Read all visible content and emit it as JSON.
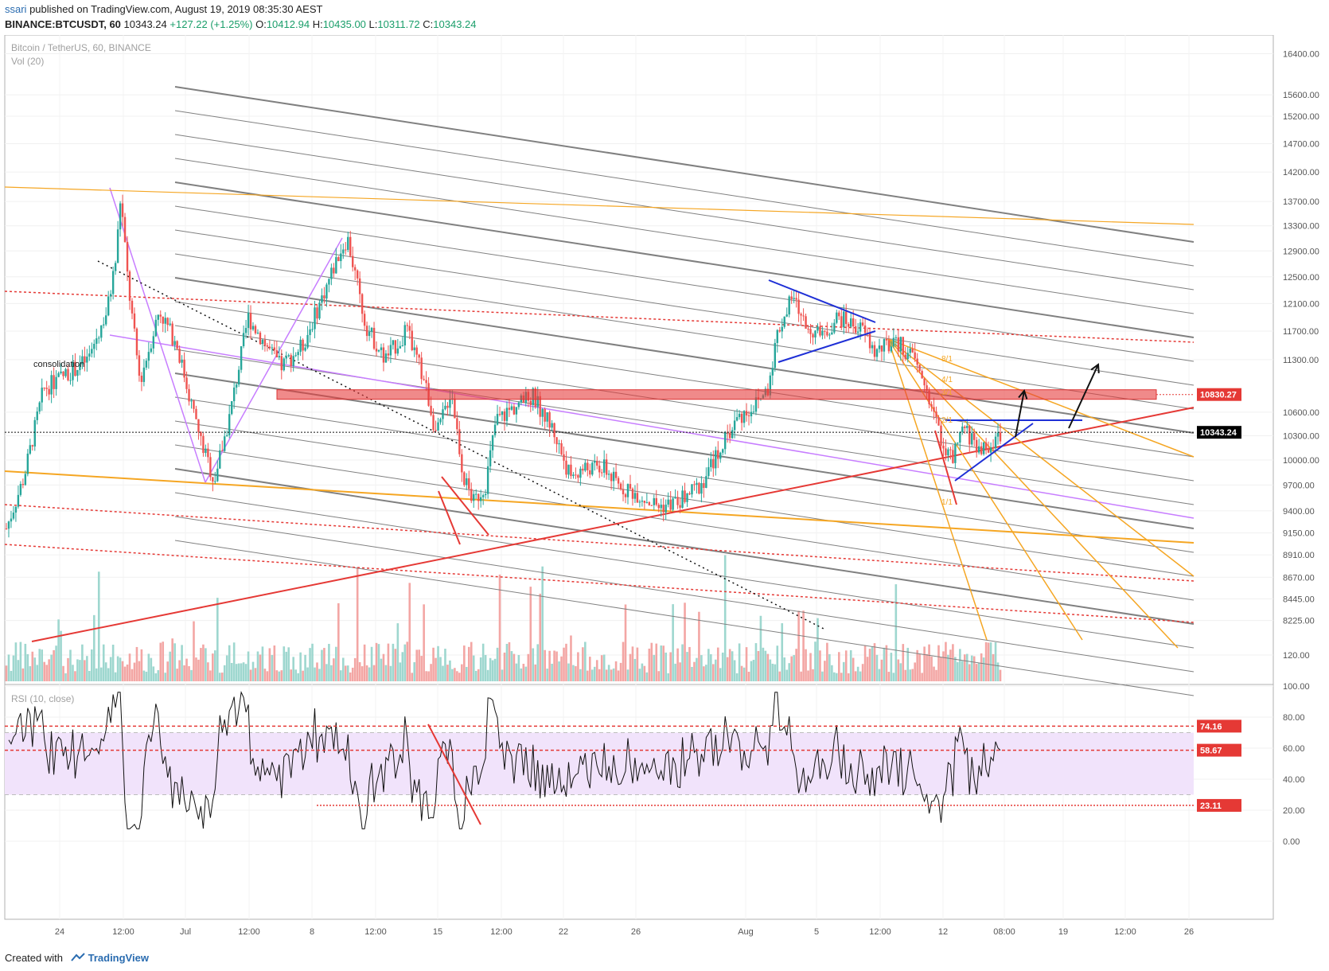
{
  "header": {
    "author": "ssari",
    "published_text": "published on TradingView.com, August 19, 2019 08:35:30 AEST",
    "symbol": "BINANCE:BTCUSDT, 60",
    "last": "10343.24",
    "change": "+127.22 (+1.25%)",
    "o_label": "O:",
    "o": "10412.94",
    "h_label": "H:",
    "h": "10435.00",
    "l_label": "L:",
    "l": "10311.72",
    "c_label": "C:",
    "c": "10343.24"
  },
  "footer": {
    "created_with": "Created with",
    "brand": "TradingView"
  },
  "chart_data": [
    {
      "type": "line",
      "title": "Bitcoin / TetherUS, 60, BINANCE",
      "subtitle": "Vol (20)",
      "y_axis": {
        "scale": "log",
        "ticks": [
          8225,
          8445,
          8670,
          8910,
          9150,
          9400,
          9700,
          10000,
          10300,
          10600,
          10830.27,
          11300,
          11700,
          12100,
          12500,
          12900,
          13300,
          13700,
          14200,
          14700,
          15200,
          15600,
          16400
        ],
        "tick_labels": [
          "8225.00",
          "8445.00",
          "8670.00",
          "8910.00",
          "9150.00",
          "9400.00",
          "9700.00",
          "10000.00",
          "10300.00",
          "10600.00",
          "10830.27",
          "11300.00",
          "11700.00",
          "12100.00",
          "12500.00",
          "12900.00",
          "13300.00",
          "13700.00",
          "14200.00",
          "14700.00",
          "15200.00",
          "15600.00",
          "16400.00"
        ],
        "ylim": [
          8100,
          16800
        ]
      },
      "x_axis": {
        "tick_labels": [
          "24",
          "12:00",
          "Jul",
          "12:00",
          "8",
          "12:00",
          "15",
          "12:00",
          "22",
          "26",
          "Aug",
          "5",
          "12:00",
          "12",
          "08:00",
          "19",
          "12:00",
          "26"
        ]
      },
      "price_path": [
        {
          "t": 0,
          "p": 9200
        },
        {
          "t": 1.2,
          "p": 9800
        },
        {
          "t": 2.5,
          "p": 10900
        },
        {
          "t": 4,
          "p": 11100
        },
        {
          "t": 5.5,
          "p": 11300
        },
        {
          "t": 6.8,
          "p": 12000
        },
        {
          "t": 7.4,
          "p": 12800
        },
        {
          "t": 7.7,
          "p": 13800
        },
        {
          "t": 8.2,
          "p": 12400
        },
        {
          "t": 9.0,
          "p": 11000
        },
        {
          "t": 10.3,
          "p": 12000
        },
        {
          "t": 11.5,
          "p": 11500
        },
        {
          "t": 13.0,
          "p": 10300
        },
        {
          "t": 14.0,
          "p": 9750
        },
        {
          "t": 15.0,
          "p": 10500
        },
        {
          "t": 16.3,
          "p": 11900
        },
        {
          "t": 17.5,
          "p": 11500
        },
        {
          "t": 18.5,
          "p": 11200
        },
        {
          "t": 20.0,
          "p": 11500
        },
        {
          "t": 21.3,
          "p": 12200
        },
        {
          "t": 22.5,
          "p": 12900
        },
        {
          "t": 23.0,
          "p": 13100
        },
        {
          "t": 24.2,
          "p": 11800
        },
        {
          "t": 25.5,
          "p": 11300
        },
        {
          "t": 27.0,
          "p": 11700
        },
        {
          "t": 28.2,
          "p": 11000
        },
        {
          "t": 29.0,
          "p": 10300
        },
        {
          "t": 30.0,
          "p": 10900
        },
        {
          "t": 30.8,
          "p": 9800
        },
        {
          "t": 31.5,
          "p": 9500
        },
        {
          "t": 32.3,
          "p": 9700
        },
        {
          "t": 33.0,
          "p": 10500
        },
        {
          "t": 34.5,
          "p": 10700
        },
        {
          "t": 35.5,
          "p": 10800
        },
        {
          "t": 36.8,
          "p": 10400
        },
        {
          "t": 38.0,
          "p": 9800
        },
        {
          "t": 39.0,
          "p": 9900
        },
        {
          "t": 40.3,
          "p": 9900
        },
        {
          "t": 41.2,
          "p": 9700
        },
        {
          "t": 42.5,
          "p": 9600
        },
        {
          "t": 44.0,
          "p": 9450
        },
        {
          "t": 45.3,
          "p": 9500
        },
        {
          "t": 46.8,
          "p": 9700
        },
        {
          "t": 48.0,
          "p": 10100
        },
        {
          "t": 49.2,
          "p": 10500
        },
        {
          "t": 50.5,
          "p": 10700
        },
        {
          "t": 51.3,
          "p": 10900
        },
        {
          "t": 52.0,
          "p": 11700
        },
        {
          "t": 53.0,
          "p": 12200
        },
        {
          "t": 53.8,
          "p": 11800
        },
        {
          "t": 55.0,
          "p": 11600
        },
        {
          "t": 56.0,
          "p": 11900
        },
        {
          "t": 57.0,
          "p": 11800
        },
        {
          "t": 57.8,
          "p": 11700
        },
        {
          "t": 58.5,
          "p": 11400
        },
        {
          "t": 59.5,
          "p": 11500
        },
        {
          "t": 60.3,
          "p": 11500
        },
        {
          "t": 61.2,
          "p": 11300
        },
        {
          "t": 62.0,
          "p": 10900
        },
        {
          "t": 62.8,
          "p": 10400
        },
        {
          "t": 63.3,
          "p": 10100
        },
        {
          "t": 63.8,
          "p": 10000
        },
        {
          "t": 64.5,
          "p": 10400
        },
        {
          "t": 65.3,
          "p": 10200
        },
        {
          "t": 66.2,
          "p": 10100
        },
        {
          "t": 67.0,
          "p": 10343
        }
      ],
      "horizontal_levels": [
        {
          "value": 10830.27,
          "label": "10830.27",
          "color": "#e53935",
          "style": "dotted"
        },
        {
          "value": 10343.24,
          "label": "10343.24",
          "color": "#000000",
          "style": "dotted"
        }
      ],
      "annotations": [
        "consolidation",
        "8/1",
        "4/1",
        "3/1",
        "2/1",
        "1/1"
      ],
      "colors": {
        "bull": "#26a69a",
        "bear": "#ef5350",
        "pitchfork": "#808080",
        "trend": "#e53935",
        "orange": "#f5a623",
        "violet": "#c77dff",
        "triangle": "#1e2fd6"
      }
    },
    {
      "type": "line",
      "title": "RSI (10, close)",
      "y_axis": {
        "ticks": [
          0,
          20,
          40,
          60,
          80,
          100,
          120
        ],
        "tick_labels": [
          "0.00",
          "20.00",
          "40.00",
          "60.00",
          "80.00",
          "100.00",
          "120.00"
        ],
        "ylim": [
          -15,
          128
        ]
      },
      "levels": [
        {
          "value": 74.16,
          "label": "74.16",
          "color": "#e53935"
        },
        {
          "value": 58.67,
          "label": "58.67",
          "color": "#e53935"
        },
        {
          "value": 23.11,
          "label": "23.11",
          "color": "#e53935"
        }
      ],
      "band": [
        30,
        70
      ],
      "rsi_end": 58.67
    }
  ]
}
